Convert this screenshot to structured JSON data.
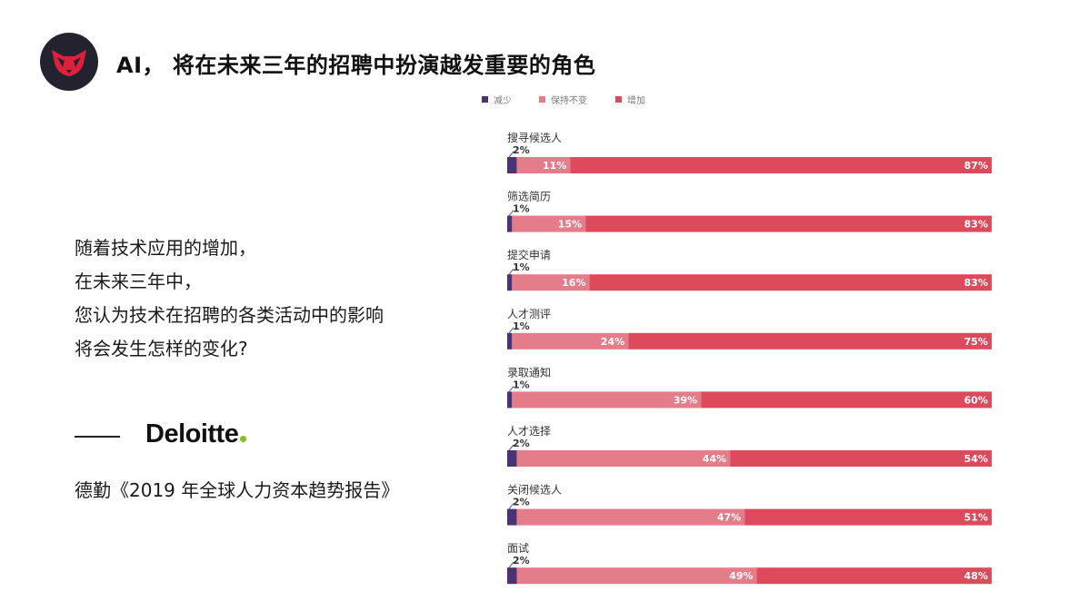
{
  "header": {
    "title": "AI， 将在未来三年的招聘中扮演越发重要的角色"
  },
  "question": {
    "lines": [
      "随着技术应用的增加，",
      "在未来三年中，",
      "您认为技术在招聘的各类活动中的影响",
      "将会发生怎样的变化?"
    ]
  },
  "source": {
    "brand": "Deloitte",
    "citation": "德勤《2019 年全球人力资本趋势报告》"
  },
  "colors": {
    "decrease": "#4a3370",
    "same": "#e57c8a",
    "increase": "#dc4a5c",
    "logo_bg": "#23232f",
    "logo_mark": "#e0203a",
    "brand_dot": "#86bc25"
  },
  "chart_data": {
    "type": "bar",
    "orientation": "horizontal",
    "stacked": true,
    "legend_position": "top",
    "categories": [
      "搜寻候选人",
      "筛选简历",
      "提交申请",
      "人才测评",
      "录取通知",
      "人才选择",
      "关闭候选人",
      "面试"
    ],
    "series": [
      {
        "name": "减少",
        "values": [
          2,
          1,
          1,
          1,
          1,
          2,
          2,
          2
        ]
      },
      {
        "name": "保持不变",
        "values": [
          11,
          15,
          16,
          24,
          39,
          44,
          47,
          49
        ]
      },
      {
        "name": "增加",
        "values": [
          87,
          83,
          83,
          75,
          60,
          54,
          51,
          48
        ]
      }
    ],
    "unit": "%"
  }
}
